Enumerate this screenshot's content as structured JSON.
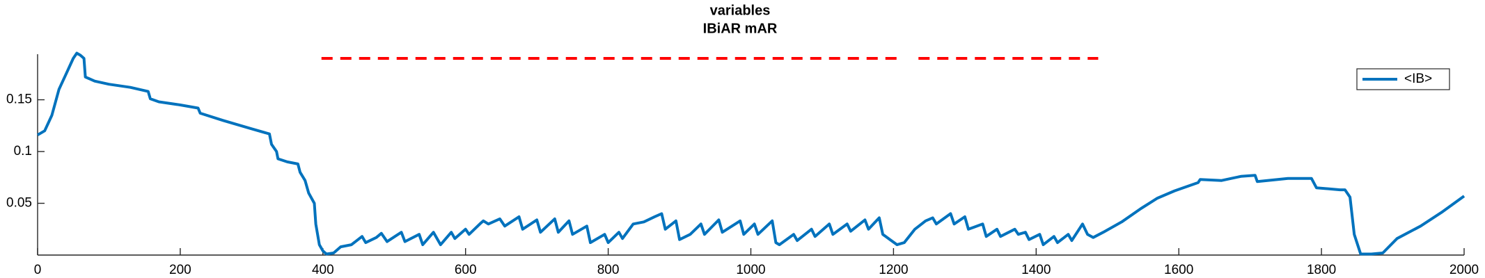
{
  "chart_data": {
    "type": "line",
    "title": "variables",
    "subtitle": "IBiAR mAR",
    "x": [
      0,
      10,
      20,
      30,
      40,
      50,
      55,
      60,
      65,
      67,
      80,
      100,
      130,
      155,
      158,
      170,
      200,
      225,
      228,
      260,
      300,
      325,
      328,
      335,
      337,
      350,
      365,
      368,
      375,
      380,
      388,
      390,
      395,
      400,
      405,
      415,
      425,
      440,
      455,
      460,
      475,
      482,
      490,
      510,
      515,
      535,
      540,
      555,
      565,
      580,
      585,
      600,
      605,
      620,
      625,
      632,
      648,
      655,
      675,
      680,
      700,
      705,
      725,
      730,
      745,
      750,
      770,
      775,
      795,
      800,
      815,
      820,
      835,
      850,
      865,
      875,
      880,
      895,
      900,
      915,
      930,
      935,
      955,
      960,
      985,
      990,
      1005,
      1010,
      1030,
      1035,
      1040,
      1060,
      1065,
      1085,
      1090,
      1110,
      1115,
      1135,
      1140,
      1160,
      1165,
      1180,
      1185,
      1195,
      1205,
      1215,
      1230,
      1245,
      1255,
      1260,
      1280,
      1285,
      1300,
      1305,
      1325,
      1330,
      1345,
      1350,
      1370,
      1375,
      1385,
      1390,
      1405,
      1410,
      1425,
      1430,
      1445,
      1450,
      1465,
      1472,
      1480,
      1494,
      1520,
      1547,
      1570,
      1594,
      1627,
      1630,
      1660,
      1687,
      1707,
      1710,
      1753,
      1786,
      1793,
      1826,
      1833,
      1840,
      1846,
      1855,
      1870,
      1886,
      1906,
      1939,
      1970,
      2000
    ],
    "series": [
      {
        "name": "<IB>",
        "color": "#0072bd",
        "values": [
          0.116,
          0.12,
          0.135,
          0.16,
          0.175,
          0.19,
          0.195,
          0.193,
          0.19,
          0.172,
          0.168,
          0.165,
          0.162,
          0.158,
          0.151,
          0.148,
          0.145,
          0.142,
          0.137,
          0.13,
          0.122,
          0.117,
          0.107,
          0.1,
          0.093,
          0.09,
          0.088,
          0.08,
          0.072,
          0.06,
          0.05,
          0.03,
          0.01,
          0.004,
          0.001,
          0.002,
          0.008,
          0.01,
          0.018,
          0.012,
          0.017,
          0.021,
          0.013,
          0.022,
          0.013,
          0.02,
          0.01,
          0.022,
          0.01,
          0.022,
          0.016,
          0.025,
          0.02,
          0.03,
          0.033,
          0.03,
          0.035,
          0.028,
          0.037,
          0.025,
          0.034,
          0.022,
          0.035,
          0.022,
          0.033,
          0.02,
          0.028,
          0.012,
          0.02,
          0.012,
          0.022,
          0.016,
          0.03,
          0.032,
          0.037,
          0.04,
          0.025,
          0.033,
          0.015,
          0.02,
          0.03,
          0.02,
          0.034,
          0.022,
          0.033,
          0.02,
          0.03,
          0.02,
          0.033,
          0.012,
          0.01,
          0.02,
          0.014,
          0.025,
          0.018,
          0.03,
          0.02,
          0.03,
          0.023,
          0.034,
          0.025,
          0.036,
          0.02,
          0.015,
          0.01,
          0.012,
          0.025,
          0.033,
          0.036,
          0.03,
          0.04,
          0.03,
          0.037,
          0.025,
          0.03,
          0.018,
          0.025,
          0.018,
          0.025,
          0.02,
          0.022,
          0.015,
          0.02,
          0.01,
          0.018,
          0.012,
          0.02,
          0.014,
          0.03,
          0.02,
          0.017,
          0.022,
          0.032,
          0.045,
          0.055,
          0.062,
          0.07,
          0.073,
          0.072,
          0.076,
          0.077,
          0.071,
          0.074,
          0.074,
          0.065,
          0.063,
          0.063,
          0.056,
          0.02,
          0.001,
          0.001,
          0.002,
          0.016,
          0.028,
          0.042,
          0.057
        ]
      }
    ],
    "reference_lines": [
      {
        "color": "#ff0000",
        "y": 0.19,
        "x": [
          398,
          1212
        ]
      },
      {
        "color": "#ff0000",
        "y": 0.19,
        "x": [
          1235,
          1487
        ]
      }
    ],
    "xlim": [
      0,
      2000
    ],
    "xticks": [
      0,
      200,
      400,
      600,
      800,
      1000,
      1200,
      1400,
      1600,
      1800,
      2000
    ],
    "ylim": [
      0,
      0.194
    ],
    "yticks": [
      0.05,
      0.1,
      0.15
    ],
    "legend": "upper right"
  }
}
